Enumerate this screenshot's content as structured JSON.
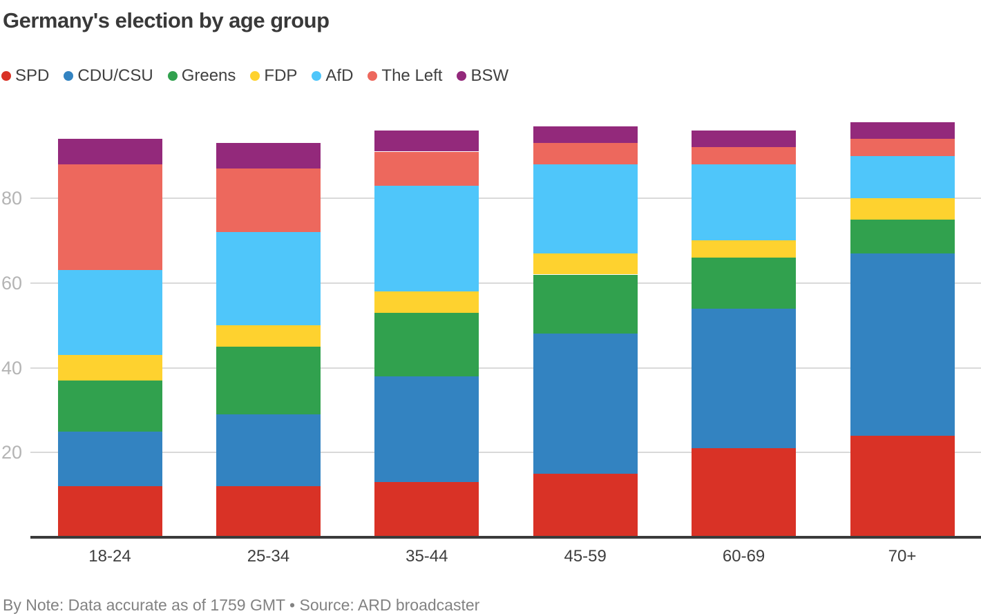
{
  "title": "Germany's election by age group",
  "footer": {
    "note": "By Note: Data accurate as of 1759 GMT • Source: ARD broadcaster"
  },
  "colors": {
    "background": "#ffffff",
    "gridline": "#d9d9d9",
    "axis_line": "#3b3b3b",
    "title_text": "#393939",
    "tick_text": "#b4b4b4",
    "category_text": "#3e3e3e",
    "footer_text": "#828282"
  },
  "chart_data": {
    "type": "bar",
    "stacked": true,
    "title": "Germany's election by age group",
    "xlabel": "",
    "ylabel": "",
    "categories": [
      "18-24",
      "25-34",
      "35-44",
      "45-59",
      "60-69",
      "70+"
    ],
    "series": [
      {
        "name": "SPD",
        "color": "#d93226",
        "values": [
          12,
          12,
          13,
          15,
          21,
          24
        ]
      },
      {
        "name": "CDU/CSU",
        "color": "#3383c1",
        "values": [
          13,
          17,
          25,
          33,
          33,
          43
        ]
      },
      {
        "name": "Greens",
        "color": "#31a14e",
        "values": [
          12,
          16,
          15,
          14,
          12,
          8
        ]
      },
      {
        "name": "FDP",
        "color": "#fed22f",
        "values": [
          6,
          5,
          5,
          5,
          4,
          5
        ]
      },
      {
        "name": "AfD",
        "color": "#4fc6fa",
        "values": [
          20,
          22,
          25,
          21,
          18,
          10
        ]
      },
      {
        "name": "The Left",
        "color": "#ed685d",
        "values": [
          25,
          15,
          8,
          5,
          4,
          4
        ]
      },
      {
        "name": "BSW",
        "color": "#93297b",
        "values": [
          6,
          6,
          5,
          4,
          4,
          4
        ]
      }
    ],
    "totals": [
      94,
      93,
      96,
      97,
      96,
      98
    ],
    "yticks": [
      20,
      40,
      60,
      80
    ],
    "ylim": [
      0,
      100
    ],
    "grid": true,
    "legend_position": "top"
  }
}
